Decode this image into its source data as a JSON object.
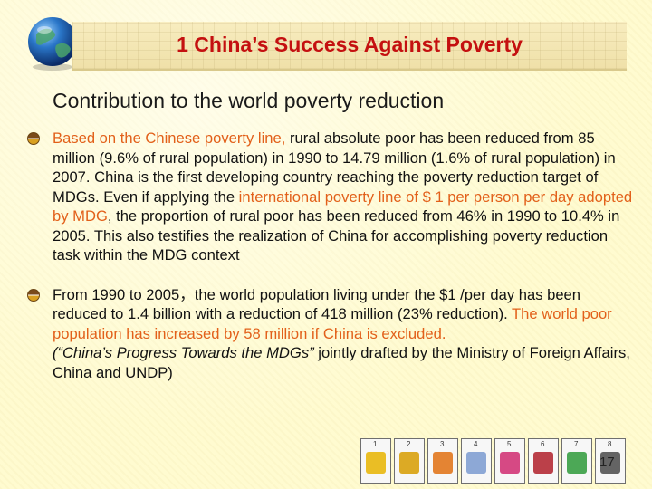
{
  "header": {
    "title": "1 China’s Success Against Poverty"
  },
  "subtitle": "Contribution to the world poverty reduction",
  "bullets": [
    {
      "segments": [
        {
          "text": "Based on the Chinese poverty line,",
          "style": "highlight"
        },
        {
          "text": " rural absolute poor has been reduced from 85 million (9.6% of rural population) in 1990 to 14.79 million (1.6% of rural population) in 2007. China is the first developing country reaching the poverty reduction target of MDGs. Even if applying the ",
          "style": "normal"
        },
        {
          "text": "international poverty line of $ 1 per person per day adopted by MDG",
          "style": "highlight"
        },
        {
          "text": ", the proportion of rural poor has been reduced from 46% in 1990 to 10.4% in 2005. This also testifies the realization of China for accomplishing poverty reduction task within the MDG context",
          "style": "normal"
        }
      ]
    },
    {
      "segments": [
        {
          "text": "From 1990 to 2005，the world population living under the $1 /per day has been reduced to 1.4 billion with a reduction of 418 million (23% reduction). ",
          "style": "normal"
        },
        {
          "text": "The world poor population has increased by 58 million if China is excluded.",
          "style": "highlight"
        },
        {
          "text": "(“China’s Progress Towards the MDGs”",
          "style": "italic",
          "break_before": true
        },
        {
          "text": " jointly drafted by the Ministry of Foreign Affairs, China and UNDP)",
          "style": "normal"
        }
      ]
    }
  ],
  "mdg_icons": [
    {
      "num": "1",
      "color": "#e8b400",
      "icon": "hunger-bowl-icon"
    },
    {
      "num": "2",
      "color": "#d79c00",
      "icon": "education-pencil-icon"
    },
    {
      "num": "3",
      "color": "#e07010",
      "icon": "gender-equality-icon"
    },
    {
      "num": "4",
      "color": "#7a9ad0",
      "icon": "child-health-icon"
    },
    {
      "num": "5",
      "color": "#d02a70",
      "icon": "maternal-health-icon"
    },
    {
      "num": "6",
      "color": "#b0202a",
      "icon": "hiv-ribbon-icon"
    },
    {
      "num": "7",
      "color": "#2e9a3a",
      "icon": "environment-tree-icon"
    },
    {
      "num": "8",
      "color": "#4a4a4a",
      "icon": "global-partnership-icon"
    }
  ],
  "page_number": "17",
  "colors": {
    "title": "#c41010",
    "highlight": "#e2601a",
    "background": "#fffbd0"
  }
}
